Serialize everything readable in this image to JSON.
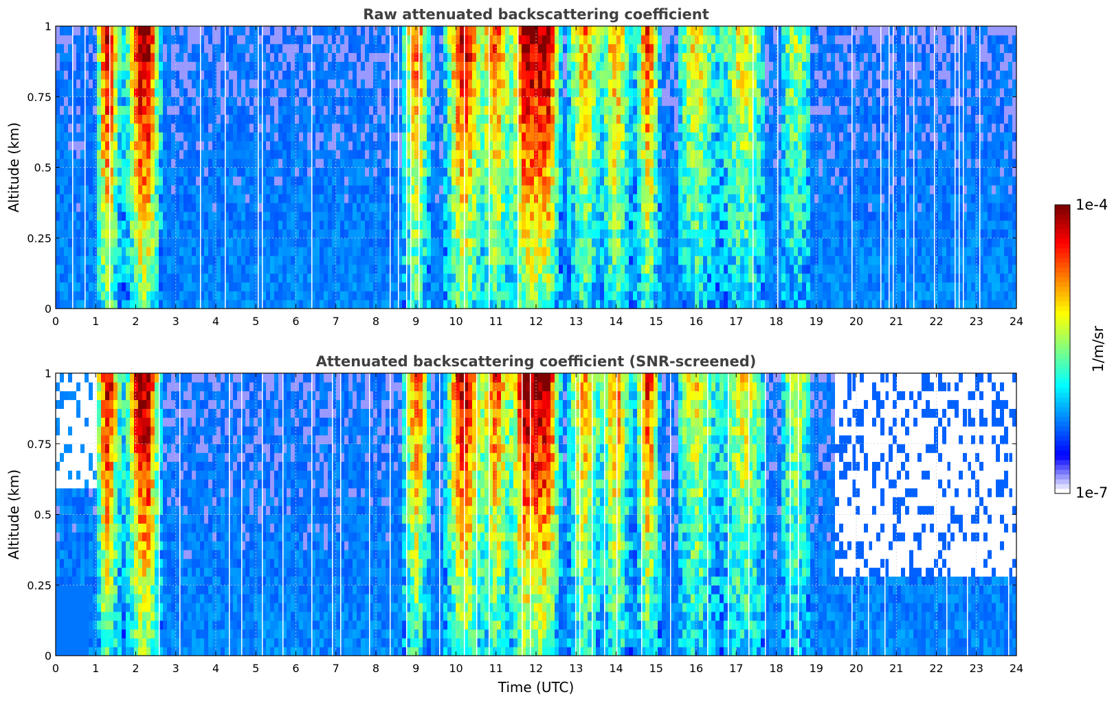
{
  "colormap": [
    "#ffffff",
    "#0000ff",
    "#0080ff",
    "#00ffff",
    "#80ff80",
    "#ffff00",
    "#ff8000",
    "#ff0000",
    "#800000"
  ],
  "chart_data": [
    {
      "type": "heatmap",
      "title": "Raw attenuated backscattering coefficient",
      "xlabel": "",
      "ylabel": "Altitude (km)",
      "xlim": [
        0,
        24
      ],
      "ylim": [
        0,
        1
      ],
      "xticks": [
        "0",
        "1",
        "2",
        "3",
        "4",
        "5",
        "6",
        "7",
        "8",
        "9",
        "10",
        "11",
        "12",
        "13",
        "14",
        "15",
        "16",
        "17",
        "18",
        "19",
        "20",
        "21",
        "22",
        "23",
        "24"
      ],
      "yticks": [
        "0",
        "0.25",
        "0.5",
        "0.75",
        "1"
      ],
      "grid": true,
      "screened": false
    },
    {
      "type": "heatmap",
      "title": "Attenuated backscattering coefficient (SNR-screened)",
      "xlabel": "Time (UTC)",
      "ylabel": "Altitude (km)",
      "xlim": [
        0,
        24
      ],
      "ylim": [
        0,
        1
      ],
      "xticks": [
        "0",
        "1",
        "2",
        "3",
        "4",
        "5",
        "6",
        "7",
        "8",
        "9",
        "10",
        "11",
        "12",
        "13",
        "14",
        "15",
        "16",
        "17",
        "18",
        "19",
        "20",
        "21",
        "22",
        "23",
        "24"
      ],
      "yticks": [
        "0",
        "0.25",
        "0.5",
        "0.75",
        "1"
      ],
      "grid": true,
      "screened": true
    }
  ],
  "colorbar": {
    "label": "1/m/sr",
    "max_label": "1e-4",
    "min_label": "1e-7",
    "scale": "log",
    "range": [
      1e-07,
      0.0001
    ]
  }
}
